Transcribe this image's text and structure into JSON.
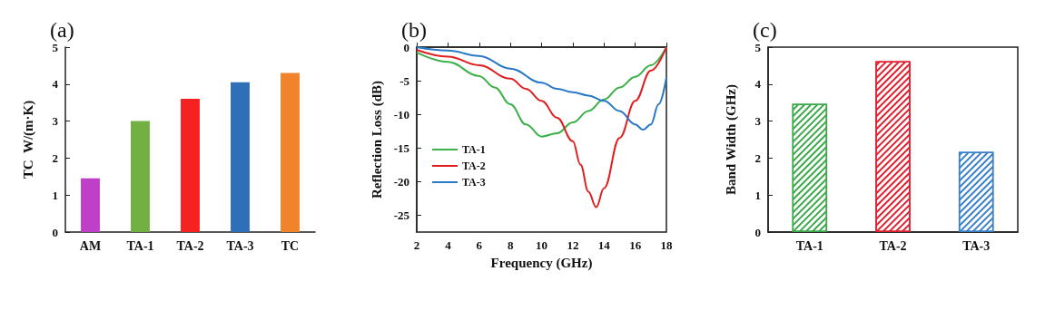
{
  "chart_data": [
    {
      "type": "bar",
      "title": "(a)",
      "ylabel": "TC  W/(m·K)",
      "categories": [
        "AM",
        "TA-1",
        "TA-2",
        "TA-3",
        "TC"
      ],
      "values": [
        1.45,
        3.0,
        3.6,
        4.05,
        4.3
      ],
      "colors": [
        "#c03fc8",
        "#72b043",
        "#f52222",
        "#2e6fb8",
        "#f0832c"
      ],
      "ylim": [
        0,
        5
      ],
      "yticks": [
        0,
        1,
        2,
        3,
        4,
        5
      ]
    },
    {
      "type": "line",
      "title": "(b)",
      "xlabel": "Frequency (GHz)",
      "ylabel": "Reflection Loss (dB)",
      "xlim": [
        2,
        18
      ],
      "xticks": [
        2,
        4,
        6,
        8,
        10,
        12,
        14,
        16,
        18
      ],
      "ylim": [
        -27.5,
        0
      ],
      "yticks": [
        -25,
        -20,
        -15,
        -10,
        -5,
        0
      ],
      "legend": "bottom left",
      "marker": "none",
      "series": [
        {
          "name": "TA-1",
          "color": "#3cb04a",
          "x": [
            2,
            4,
            6,
            7,
            8,
            9,
            10,
            11,
            12,
            13,
            14,
            15,
            16,
            17,
            18
          ],
          "values": [
            -0.8,
            -2.2,
            -4.3,
            -6,
            -8.5,
            -11.5,
            -13.3,
            -12.8,
            -11.2,
            -9.5,
            -7.8,
            -6,
            -4.4,
            -2.7,
            0
          ]
        },
        {
          "name": "TA-2",
          "color": "#e02020",
          "x": [
            2,
            4,
            6,
            8,
            9,
            10,
            11,
            12,
            12.5,
            13,
            13.5,
            14,
            15,
            16,
            17,
            18
          ],
          "values": [
            -0.4,
            -1.4,
            -2.7,
            -4.7,
            -6.2,
            -8,
            -10.5,
            -14,
            -17.5,
            -21.5,
            -23.8,
            -21,
            -13.5,
            -8,
            -3.5,
            0
          ]
        },
        {
          "name": "TA-3",
          "color": "#2a78c8",
          "x": [
            2,
            4,
            6,
            8,
            10,
            11,
            12,
            13,
            14,
            15,
            16,
            16.5,
            17,
            17.5,
            18
          ],
          "values": [
            0,
            -0.5,
            -1.3,
            -3.2,
            -5.3,
            -6.2,
            -6.7,
            -7.2,
            -8,
            -9.5,
            -11.5,
            -12.3,
            -11.5,
            -8.5,
            -4.5
          ]
        }
      ]
    },
    {
      "type": "bar",
      "title": "(c)",
      "ylabel": "Band Width (GHz)",
      "categories": [
        "TA-1",
        "TA-2",
        "TA-3"
      ],
      "values": [
        3.47,
        4.62,
        2.17
      ],
      "colors": [
        "#3ca84a",
        "#e02030",
        "#3a80c8"
      ],
      "ylim": [
        0,
        5
      ],
      "yticks": [
        0,
        1,
        2,
        3,
        4,
        5
      ]
    }
  ]
}
